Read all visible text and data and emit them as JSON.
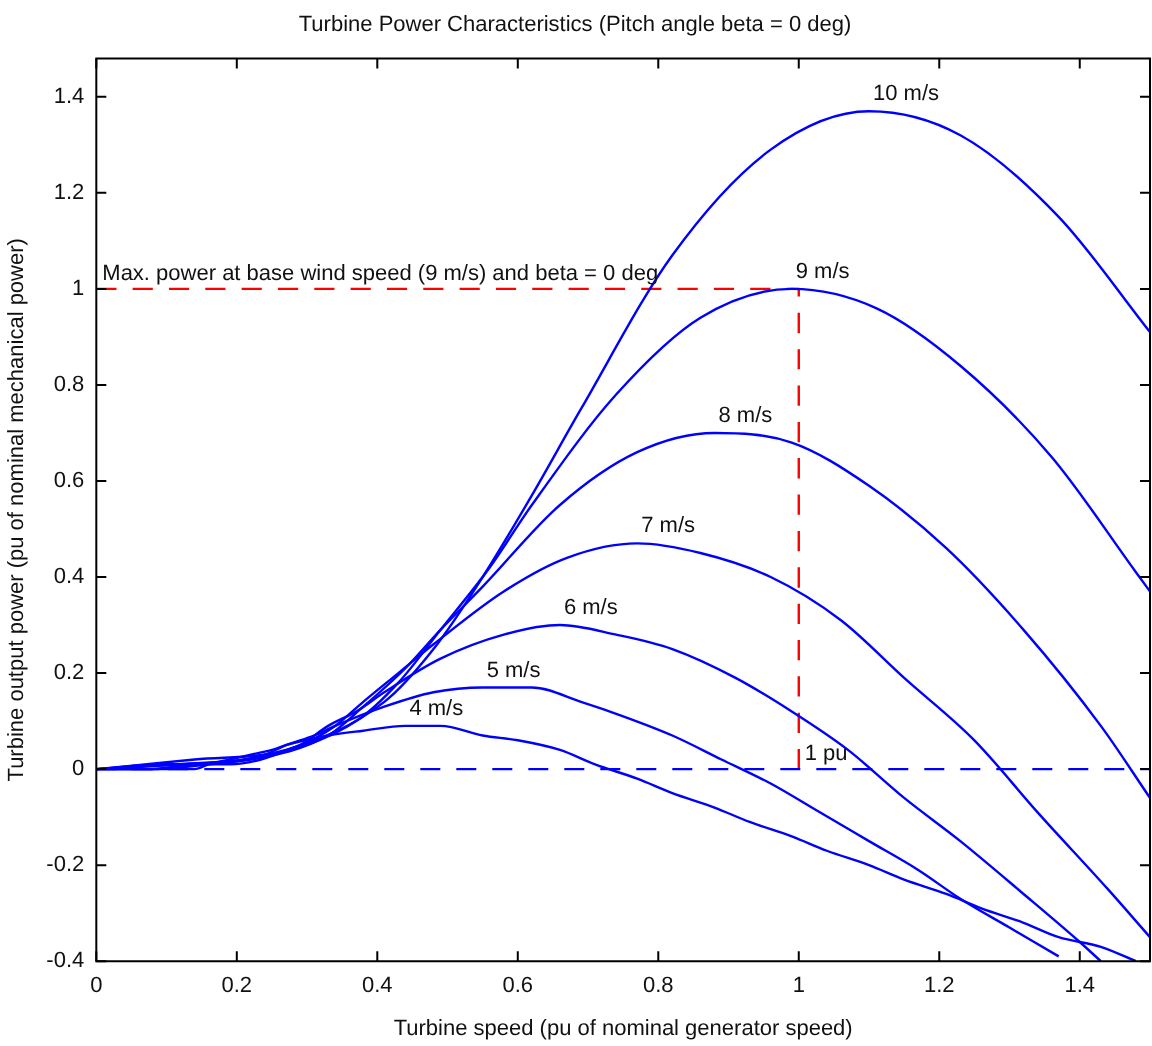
{
  "chart_data": {
    "type": "line",
    "title": "Turbine Power Characteristics (Pitch angle beta = 0 deg)",
    "xlabel": "Turbine speed (pu of nominal generator speed)",
    "ylabel": "Turbine output power (pu of nominal mechanical power)",
    "xlim": [
      0,
      1.5
    ],
    "ylim": [
      -0.4,
      1.48
    ],
    "xticks": [
      0,
      0.2,
      0.4,
      0.6,
      0.8,
      1,
      1.2,
      1.4
    ],
    "yticks": [
      -0.4,
      -0.2,
      0,
      0.2,
      0.4,
      0.6,
      0.8,
      1,
      1.2,
      1.4
    ],
    "legend": false,
    "marker": "none",
    "series": [
      {
        "name": "4 m/s",
        "color": "#0000ff",
        "x": [
          0,
          0.05,
          0.08,
          0.11,
          0.14,
          0.16,
          0.19,
          0.22,
          0.25,
          0.27,
          0.33,
          0.38,
          0.44,
          0.49,
          0.55,
          0.6,
          0.66,
          0.71,
          0.77,
          0.82,
          0.88,
          0.93,
          0.99,
          1.04,
          1.1,
          1.15,
          1.21,
          1.26,
          1.32,
          1.37,
          1.43,
          1.48
        ],
        "values": [
          0,
          0,
          0,
          0,
          0,
          0.01,
          0.02,
          0.03,
          0.04,
          0.05,
          0.07,
          0.08,
          0.09,
          0.09,
          0.07,
          0.06,
          0.04,
          0.01,
          -0.02,
          -0.05,
          -0.08,
          -0.11,
          -0.14,
          -0.17,
          -0.2,
          -0.23,
          -0.26,
          -0.29,
          -0.32,
          -0.35,
          -0.37,
          -0.4
        ]
      },
      {
        "name": "5 m/s",
        "color": "#0000ff",
        "x": [
          0,
          0.07,
          0.14,
          0.21,
          0.24,
          0.27,
          0.31,
          0.34,
          0.41,
          0.48,
          0.55,
          0.62,
          0.69,
          0.75,
          0.82,
          0.89,
          0.96,
          1.03,
          1.1,
          1.17,
          1.23,
          1.3,
          1.37
        ],
        "values": [
          0,
          0,
          0.01,
          0.02,
          0.03,
          0.05,
          0.07,
          0.09,
          0.13,
          0.16,
          0.17,
          0.17,
          0.14,
          0.11,
          0.07,
          0.02,
          -0.03,
          -0.09,
          -0.15,
          -0.21,
          -0.27,
          -0.33,
          -0.39
        ]
      },
      {
        "name": "6 m/s",
        "color": "#0000ff",
        "x": [
          0,
          0.08,
          0.16,
          0.25,
          0.29,
          0.33,
          0.37,
          0.41,
          0.49,
          0.58,
          0.66,
          0.74,
          0.82,
          0.91,
          0.99,
          1.07,
          1.15,
          1.23,
          1.32,
          1.4,
          1.43
        ],
        "values": [
          0,
          0,
          0.01,
          0.03,
          0.05,
          0.09,
          0.12,
          0.16,
          0.23,
          0.28,
          0.3,
          0.28,
          0.25,
          0.19,
          0.12,
          0.04,
          -0.06,
          -0.15,
          -0.26,
          -0.36,
          -0.4
        ]
      },
      {
        "name": "7 m/s",
        "color": "#0000ff",
        "x": [
          0,
          0.1,
          0.19,
          0.29,
          0.34,
          0.38,
          0.43,
          0.48,
          0.58,
          0.67,
          0.77,
          0.86,
          0.96,
          1.06,
          1.15,
          1.25,
          1.34,
          1.44,
          1.5
        ],
        "values": [
          0,
          0.01,
          0.01,
          0.05,
          0.09,
          0.14,
          0.2,
          0.26,
          0.37,
          0.44,
          0.47,
          0.45,
          0.4,
          0.31,
          0.19,
          0.06,
          -0.09,
          -0.25,
          -0.35
        ]
      },
      {
        "name": "8 m/s",
        "color": "#0000ff",
        "x": [
          0,
          0.11,
          0.22,
          0.33,
          0.38,
          0.44,
          0.49,
          0.55,
          0.66,
          0.77,
          0.88,
          0.99,
          1.1,
          1.21,
          1.32,
          1.43,
          1.5
        ],
        "values": [
          0,
          0.01,
          0.02,
          0.07,
          0.13,
          0.21,
          0.29,
          0.38,
          0.55,
          0.66,
          0.7,
          0.68,
          0.59,
          0.46,
          0.29,
          0.09,
          -0.06
        ]
      },
      {
        "name": "9 m/s",
        "color": "#0000ff",
        "x": [
          0,
          0.12,
          0.25,
          0.37,
          0.43,
          0.49,
          0.56,
          0.62,
          0.74,
          0.86,
          0.99,
          1.11,
          1.23,
          1.36,
          1.48,
          1.5
        ],
        "values": [
          0,
          0.01,
          0.03,
          0.1,
          0.18,
          0.29,
          0.42,
          0.55,
          0.78,
          0.94,
          1.0,
          0.96,
          0.84,
          0.65,
          0.41,
          0.37
        ]
      },
      {
        "name": "10 m/s",
        "color": "#0000ff",
        "x": [
          0,
          0.14,
          0.27,
          0.41,
          0.48,
          0.55,
          0.62,
          0.69,
          0.82,
          0.96,
          1.1,
          1.23,
          1.37,
          1.5
        ],
        "values": [
          0,
          0.02,
          0.04,
          0.14,
          0.25,
          0.4,
          0.57,
          0.75,
          1.07,
          1.29,
          1.37,
          1.32,
          1.15,
          0.91
        ]
      },
      {
        "type": "line",
        "color": "#ff0000",
        "line_style": "dashed",
        "x": [
          0,
          1,
          1
        ],
        "values": [
          1,
          1,
          0
        ]
      }
    ],
    "ref_lines": [
      {
        "axis": "y",
        "value": 0,
        "color": "#0000ff",
        "line_style": "dashed"
      }
    ],
    "annotations": [
      {
        "text": "Max. power at base wind speed (9 m/s) and beta = 0 deg",
        "x": 0,
        "y": 1
      },
      {
        "text": "1 pu",
        "x": 1,
        "y": 0
      }
    ]
  }
}
